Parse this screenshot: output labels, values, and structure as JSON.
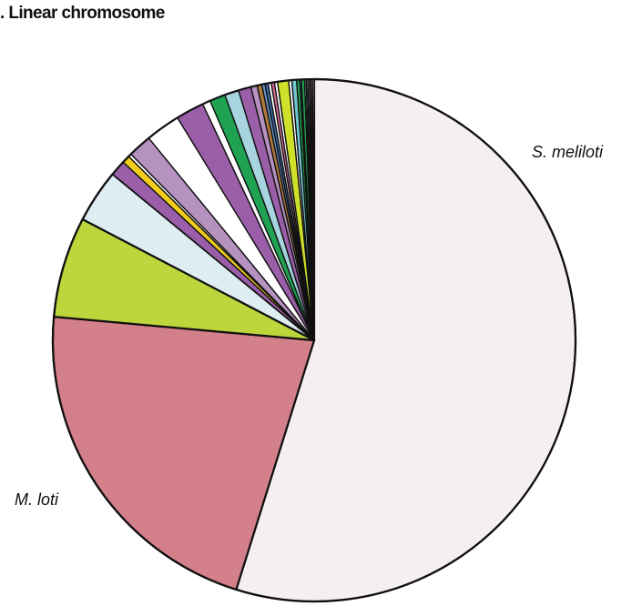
{
  "chart_data": {
    "type": "pie",
    "title": ". Linear chromosome",
    "start": "12 o'clock",
    "direction": "clockwise",
    "slices": [
      {
        "name": "S. meliloti",
        "value": 56.3,
        "color": "#f6eff2",
        "label": "S. meliloti"
      },
      {
        "name": "M. loti",
        "value": 22.2,
        "color": "#d4808a",
        "label": "M. loti"
      },
      {
        "name": "",
        "value": 6.4,
        "color": "#bcd63c",
        "label": ""
      },
      {
        "name": "",
        "value": 3.4,
        "color": "#deedf2",
        "label": ""
      },
      {
        "name": "",
        "value": 1.0,
        "color": "#9b5ea8",
        "label": ""
      },
      {
        "name": "",
        "value": 0.5,
        "color": "#f2cd1c",
        "label": ""
      },
      {
        "name": "",
        "value": 0.2,
        "color": "#ffffff",
        "label": ""
      },
      {
        "name": "",
        "value": 1.5,
        "color": "#b592bf",
        "label": ""
      },
      {
        "name": "",
        "value": 2.2,
        "color": "#ffffff",
        "label": ""
      },
      {
        "name": "",
        "value": 1.8,
        "color": "#9b5ea8",
        "label": ""
      },
      {
        "name": "",
        "value": 0.5,
        "color": "#ffffff",
        "label": ""
      },
      {
        "name": "",
        "value": 1.0,
        "color": "#1fa352",
        "label": ""
      },
      {
        "name": "",
        "value": 0.9,
        "color": "#a7d4df",
        "label": ""
      },
      {
        "name": "",
        "value": 0.8,
        "color": "#9b5ea8",
        "label": ""
      },
      {
        "name": "",
        "value": 0.4,
        "color": "#b592bf",
        "label": ""
      },
      {
        "name": "",
        "value": 0.3,
        "color": "#b07a3d",
        "label": ""
      },
      {
        "name": "",
        "value": 0.2,
        "color": "#6a9cc9",
        "label": ""
      },
      {
        "name": "",
        "value": 0.2,
        "color": "#3d6eb0",
        "label": ""
      },
      {
        "name": "",
        "value": 0.2,
        "color": "#ffffff",
        "label": ""
      },
      {
        "name": "",
        "value": 0.2,
        "color": "#e46fa0",
        "label": ""
      },
      {
        "name": "",
        "value": 0.2,
        "color": "#ffffff",
        "label": ""
      },
      {
        "name": "",
        "value": 0.7,
        "color": "#cfe02a",
        "label": ""
      },
      {
        "name": "",
        "value": 0.2,
        "color": "#ffffff",
        "label": ""
      },
      {
        "name": "",
        "value": 0.3,
        "color": "#6fc7d2",
        "label": ""
      },
      {
        "name": "",
        "value": 0.2,
        "color": "#1fa352",
        "label": ""
      },
      {
        "name": "",
        "value": 0.1,
        "color": "#3d6eb0",
        "label": ""
      },
      {
        "name": "",
        "value": 0.2,
        "color": "#1fa352",
        "label": ""
      },
      {
        "name": "",
        "value": 0.1,
        "color": "#ffffff",
        "label": ""
      },
      {
        "name": "",
        "value": 0.1,
        "color": "#6fc7d2",
        "label": ""
      },
      {
        "name": "",
        "value": 0.1,
        "color": "#ffffff",
        "label": ""
      },
      {
        "name": "",
        "value": 0.1,
        "color": "#e46fa0",
        "label": ""
      },
      {
        "name": "",
        "value": 0.1,
        "color": "#ffffff",
        "label": ""
      },
      {
        "name": "",
        "value": 0.1,
        "color": "#ffffff",
        "label": ""
      }
    ]
  }
}
